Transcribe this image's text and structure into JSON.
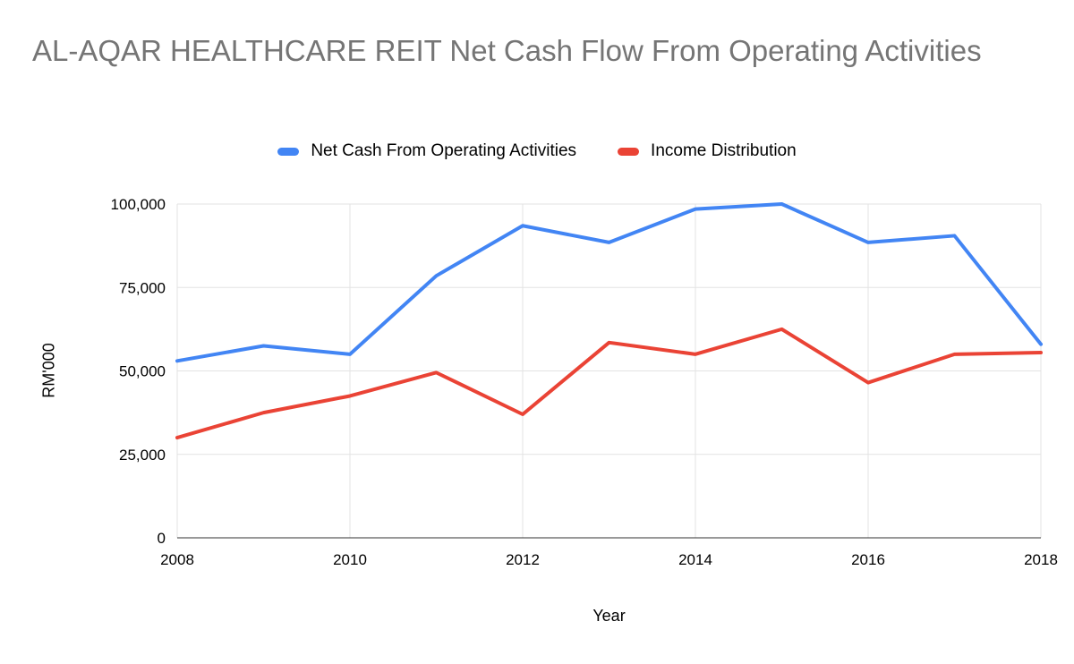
{
  "chart_data": {
    "type": "line",
    "title": "AL-AQAR HEALTHCARE REIT Net Cash Flow From Operating Activities",
    "xlabel": "Year",
    "ylabel": "RM'000",
    "x": [
      2008,
      2009,
      2010,
      2011,
      2012,
      2013,
      2014,
      2015,
      2016,
      2017,
      2018
    ],
    "series": [
      {
        "name": "Net Cash From Operating Activities",
        "color": "#4285F4",
        "values": [
          53000,
          57500,
          55000,
          78500,
          93500,
          88500,
          98500,
          100000,
          88500,
          90500,
          58000
        ]
      },
      {
        "name": "Income Distribution",
        "color": "#EA4335",
        "values": [
          30000,
          37500,
          42500,
          49500,
          37000,
          58500,
          55000,
          62500,
          46500,
          55000,
          55500
        ]
      }
    ],
    "ylim": [
      0,
      100000
    ],
    "yticks": [
      0,
      25000,
      50000,
      75000,
      100000
    ],
    "xticks": [
      2008,
      2010,
      2012,
      2014,
      2016,
      2018
    ],
    "grid": true,
    "legend_position": "top",
    "gridline_color": "#e3e3e3",
    "axis_line_color": "#333333",
    "title_color": "#757575"
  }
}
